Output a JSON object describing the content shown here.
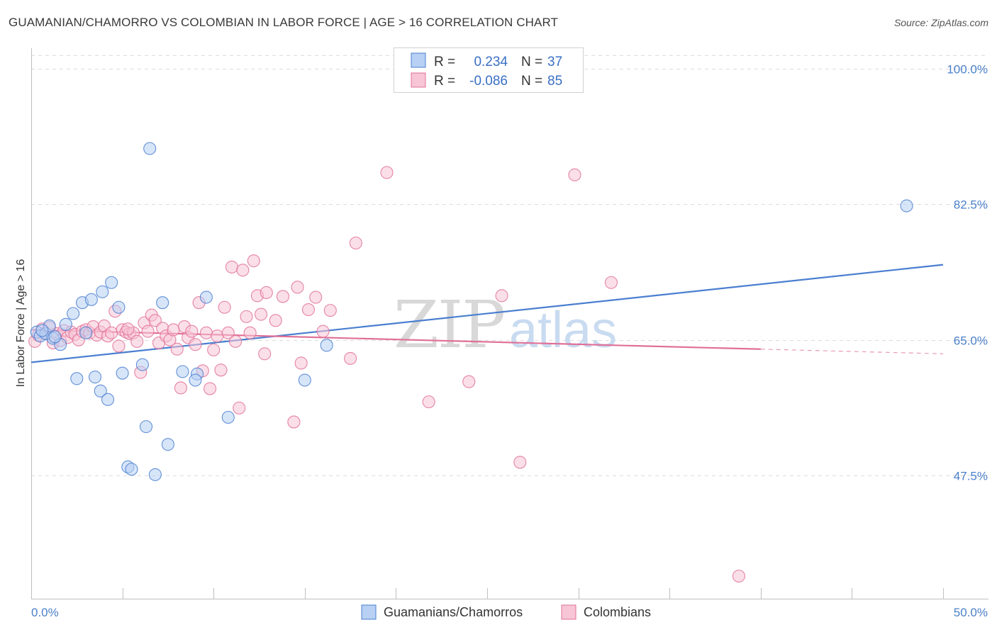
{
  "header": {
    "title": "GUAMANIAN/CHAMORRO VS COLOMBIAN IN LABOR FORCE | AGE > 16 CORRELATION CHART",
    "source": "Source: ZipAtlas.com"
  },
  "watermark": {
    "zip": "ZIP",
    "atlas": "atlas"
  },
  "legend": {
    "rows": [
      {
        "r_label": "R =",
        "r_value": "0.234",
        "n_label": "N =",
        "n_value": "37"
      },
      {
        "r_label": "R =",
        "r_value": "-0.086",
        "n_label": "N =",
        "n_value": "85"
      }
    ]
  },
  "chart_data": {
    "type": "scatter",
    "title": "GUAMANIAN/CHAMORRO VS COLOMBIAN IN LABOR FORCE | AGE > 16 CORRELATION CHART",
    "xlabel": "",
    "ylabel": "In Labor Force | Age > 16",
    "xlim": [
      0,
      50
    ],
    "ylim": [
      32.5,
      102.5
    ],
    "x_tick_labels": [
      "0.0%",
      "50.0%"
    ],
    "y_ticks": [
      47.5,
      65.0,
      82.5,
      100.0
    ],
    "y_tick_labels": [
      "47.5%",
      "65.0%",
      "82.5%",
      "100.0%"
    ],
    "grid": true,
    "legend_position": "top-center",
    "colors": {
      "guam": "#4a7fd0",
      "guam_fill": "#b7d0f4",
      "col": "#e07098",
      "col_fill": "#f7c5d6",
      "tick": "#4a7fc9"
    },
    "series": [
      {
        "name": "Guamanians/Chamorros",
        "color": "#4a7fd0",
        "trend": {
          "x0": 0,
          "y0": 62.1,
          "x1": 50,
          "y1": 74.7
        },
        "points": [
          [
            0.3,
            66.0
          ],
          [
            0.5,
            65.5
          ],
          [
            0.8,
            65.8
          ],
          [
            1.0,
            66.8
          ],
          [
            1.2,
            65.2
          ],
          [
            1.6,
            64.4
          ],
          [
            1.9,
            67.0
          ],
          [
            2.3,
            68.4
          ],
          [
            2.5,
            60.0
          ],
          [
            2.8,
            69.8
          ],
          [
            3.3,
            70.2
          ],
          [
            3.5,
            60.2
          ],
          [
            3.8,
            58.4
          ],
          [
            3.9,
            71.2
          ],
          [
            4.2,
            57.3
          ],
          [
            4.4,
            72.4
          ],
          [
            4.8,
            69.2
          ],
          [
            5.0,
            60.7
          ],
          [
            5.3,
            48.6
          ],
          [
            5.5,
            48.3
          ],
          [
            6.1,
            61.8
          ],
          [
            6.3,
            53.8
          ],
          [
            6.5,
            89.7
          ],
          [
            6.8,
            47.6
          ],
          [
            7.2,
            69.8
          ],
          [
            7.5,
            51.5
          ],
          [
            8.3,
            60.9
          ],
          [
            9.1,
            60.6
          ],
          [
            9.0,
            59.8
          ],
          [
            9.6,
            70.5
          ],
          [
            10.8,
            55.0
          ],
          [
            15.0,
            59.8
          ],
          [
            16.2,
            64.3
          ],
          [
            48.0,
            82.3
          ],
          [
            3.0,
            65.9
          ],
          [
            1.3,
            65.4
          ],
          [
            0.6,
            66.2
          ]
        ]
      },
      {
        "name": "Colombians",
        "color": "#e07098",
        "trend": {
          "x0": 0,
          "y0": 66.3,
          "x1": 40,
          "y1": 63.8,
          "dash_x1": 50,
          "dash_y1": 63.2
        },
        "points": [
          [
            0.2,
            64.8
          ],
          [
            0.4,
            65.6
          ],
          [
            0.6,
            66.4
          ],
          [
            0.8,
            65.9
          ],
          [
            1.0,
            66.6
          ],
          [
            1.2,
            64.6
          ],
          [
            1.4,
            65.8
          ],
          [
            1.6,
            64.9
          ],
          [
            1.8,
            66.2
          ],
          [
            2.0,
            65.3
          ],
          [
            2.2,
            66.0
          ],
          [
            2.4,
            65.7
          ],
          [
            2.6,
            65.0
          ],
          [
            2.8,
            66.1
          ],
          [
            3.0,
            66.3
          ],
          [
            3.2,
            65.9
          ],
          [
            3.4,
            66.7
          ],
          [
            3.6,
            65.6
          ],
          [
            3.8,
            66.0
          ],
          [
            4.0,
            66.8
          ],
          [
            4.2,
            65.5
          ],
          [
            4.4,
            65.9
          ],
          [
            4.6,
            68.7
          ],
          [
            4.8,
            64.2
          ],
          [
            5.0,
            66.3
          ],
          [
            5.2,
            66.0
          ],
          [
            5.4,
            65.8
          ],
          [
            5.6,
            65.9
          ],
          [
            5.8,
            64.8
          ],
          [
            6.0,
            60.8
          ],
          [
            6.2,
            67.2
          ],
          [
            6.4,
            66.1
          ],
          [
            6.6,
            68.2
          ],
          [
            6.8,
            67.5
          ],
          [
            7.0,
            64.6
          ],
          [
            7.2,
            66.5
          ],
          [
            7.4,
            65.5
          ],
          [
            7.6,
            65.0
          ],
          [
            7.8,
            66.3
          ],
          [
            8.0,
            63.8
          ],
          [
            8.2,
            58.8
          ],
          [
            8.4,
            66.7
          ],
          [
            8.6,
            65.3
          ],
          [
            8.8,
            66.1
          ],
          [
            9.0,
            64.4
          ],
          [
            9.2,
            69.8
          ],
          [
            9.4,
            61.0
          ],
          [
            9.6,
            65.9
          ],
          [
            9.8,
            58.7
          ],
          [
            10.0,
            63.7
          ],
          [
            10.2,
            65.5
          ],
          [
            10.4,
            61.1
          ],
          [
            10.6,
            69.2
          ],
          [
            10.8,
            65.9
          ],
          [
            11.0,
            74.4
          ],
          [
            11.2,
            64.8
          ],
          [
            11.4,
            56.2
          ],
          [
            11.6,
            74.0
          ],
          [
            11.8,
            68.0
          ],
          [
            12.0,
            65.9
          ],
          [
            12.2,
            75.2
          ],
          [
            12.4,
            70.7
          ],
          [
            12.6,
            68.3
          ],
          [
            12.8,
            63.2
          ],
          [
            12.9,
            71.1
          ],
          [
            13.4,
            67.5
          ],
          [
            13.8,
            70.6
          ],
          [
            14.4,
            54.4
          ],
          [
            14.6,
            71.8
          ],
          [
            14.8,
            62.0
          ],
          [
            15.2,
            68.9
          ],
          [
            15.6,
            70.5
          ],
          [
            16.0,
            66.1
          ],
          [
            16.4,
            68.8
          ],
          [
            17.5,
            62.6
          ],
          [
            17.8,
            77.5
          ],
          [
            19.5,
            86.6
          ],
          [
            21.8,
            57.0
          ],
          [
            24.0,
            59.6
          ],
          [
            25.8,
            70.7
          ],
          [
            26.8,
            49.2
          ],
          [
            29.8,
            86.3
          ],
          [
            31.8,
            72.4
          ],
          [
            38.8,
            34.5
          ],
          [
            5.3,
            66.4
          ]
        ]
      }
    ]
  },
  "axes": {
    "ylabel": "In Labor Force | Age > 16",
    "x_left": "0.0%",
    "x_right": "50.0%"
  },
  "bottom_legend": {
    "items": [
      "Guamanians/Chamorros",
      "Colombians"
    ]
  }
}
